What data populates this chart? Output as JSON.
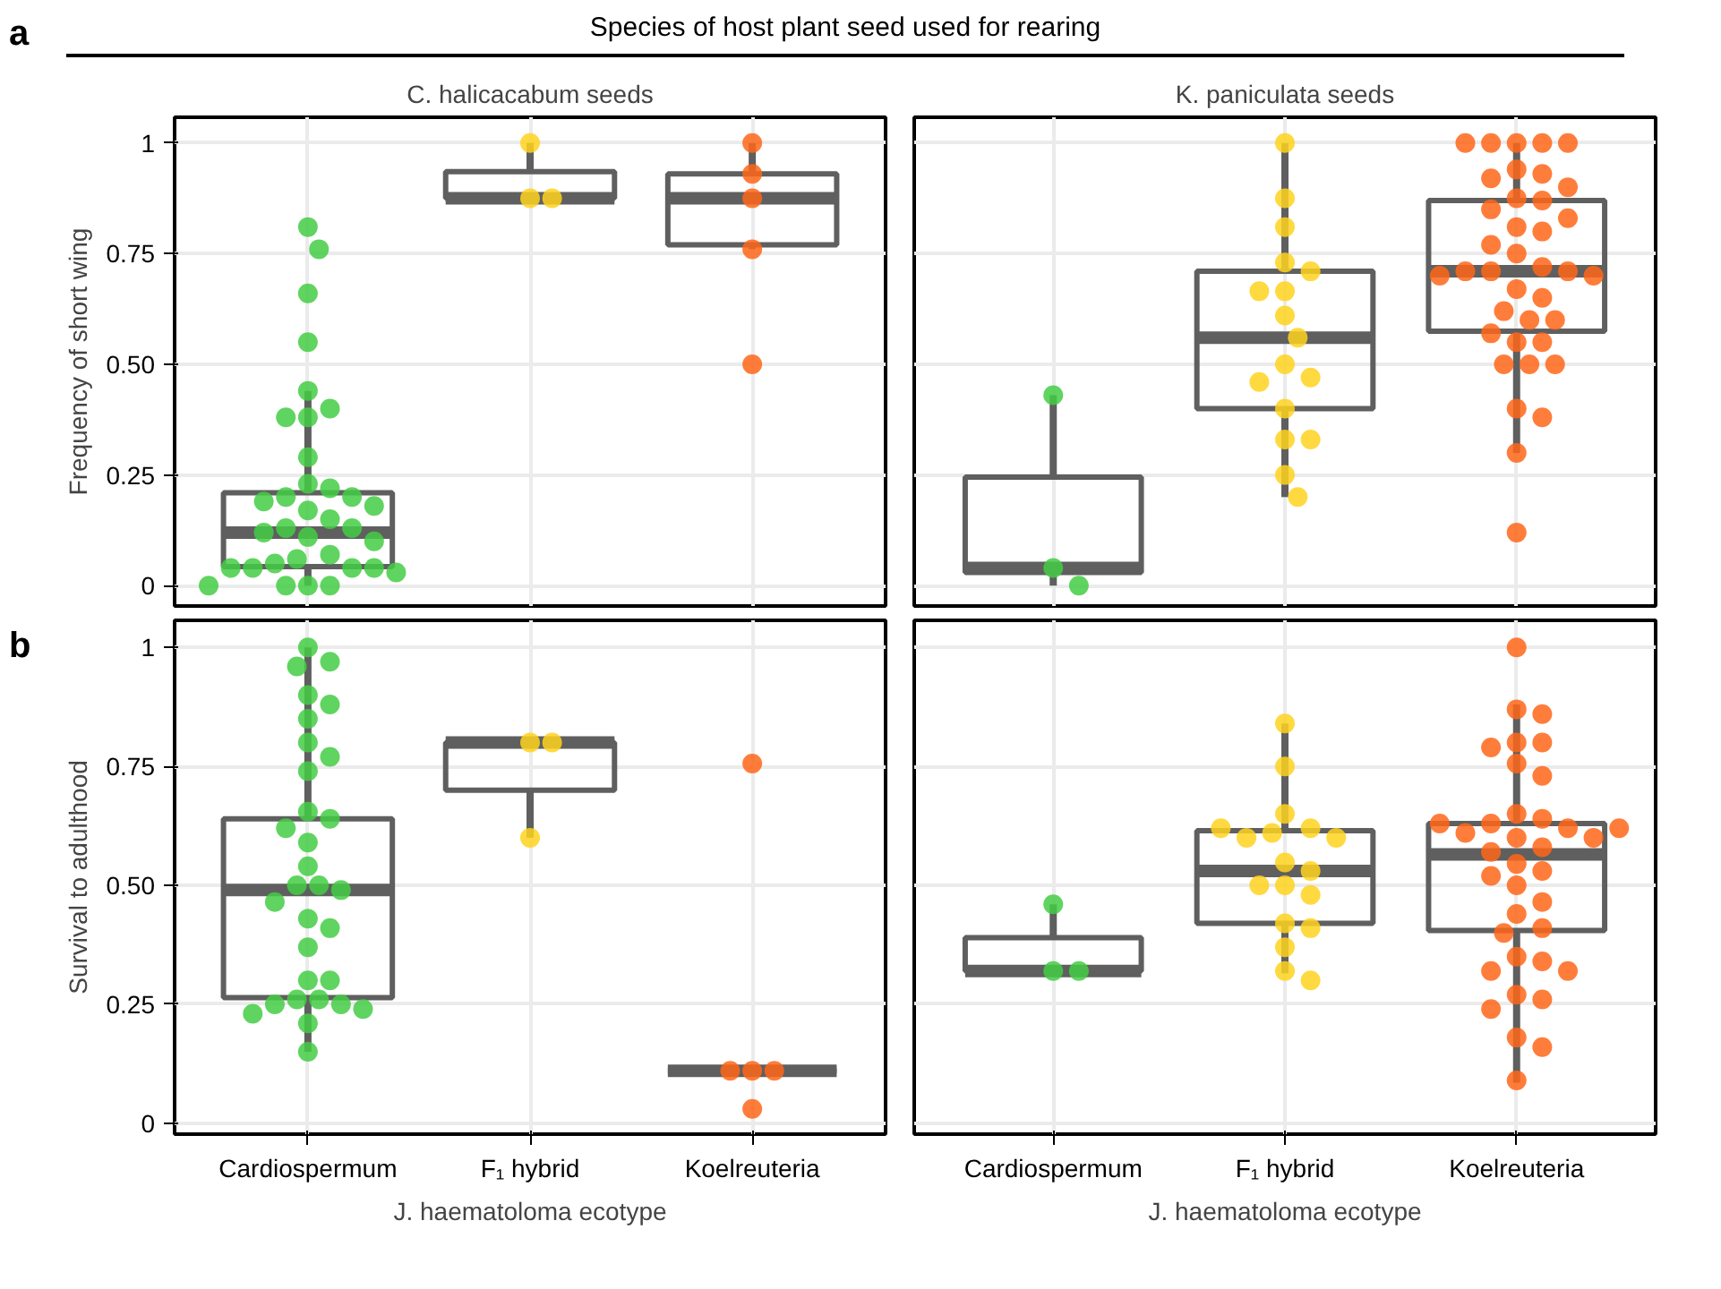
{
  "chart_data": [
    {
      "type": "box",
      "title": "C. halicacabum seeds",
      "ylabel": "Frequency of short wing",
      "annotations": [
        "a",
        "Species of host plant seed used for rearing"
      ],
      "categories": [
        "Cardiospermum",
        "F₁ hybrid",
        "Koelreuteria"
      ],
      "color": "#5f5f5f",
      "grid": true,
      "tick_labels": "y",
      "ylim": [
        -0.046,
        1.058
      ],
      "yticks": [
        0,
        {
          "value": 0.25,
          "label": "0.25"
        },
        {
          "value": 0.5,
          "label": "0.50"
        },
        {
          "value": 0.75,
          "label": "0.75"
        },
        1
      ],
      "boxes": [
        {
          "low": 0,
          "q1": 0.043,
          "median": 0.12,
          "q3": 0.21,
          "high": 0.44
        },
        {
          "low": 0.875,
          "q1": 0.875,
          "median": 0.875,
          "q3": 0.935,
          "high": 1.0
        },
        {
          "low": 0.76,
          "q1": 0.77,
          "median": 0.875,
          "q3": 0.93,
          "high": 1.0
        }
      ],
      "series": [
        {
          "type": "scatter",
          "color": "#44cc44",
          "x": [
            "Cardiospermum",
            "Cardiospermum",
            "Cardiospermum",
            "Cardiospermum",
            "Cardiospermum",
            "Cardiospermum",
            "Cardiospermum",
            "Cardiospermum",
            "Cardiospermum",
            "Cardiospermum",
            "Cardiospermum",
            "Cardiospermum",
            "Cardiospermum",
            "Cardiospermum",
            "Cardiospermum",
            "Cardiospermum",
            "Cardiospermum",
            "Cardiospermum",
            "Cardiospermum",
            "Cardiospermum",
            "Cardiospermum",
            "Cardiospermum",
            "Cardiospermum",
            "Cardiospermum",
            "Cardiospermum",
            "Cardiospermum",
            "Cardiospermum",
            "Cardiospermum",
            "Cardiospermum",
            "Cardiospermum",
            "Cardiospermum",
            "Cardiospermum",
            "Cardiospermum",
            "Cardiospermum"
          ],
          "values": [
            0.81,
            0.76,
            0.66,
            0.55,
            0.44,
            0.4,
            0.38,
            0.38,
            0.29,
            0.23,
            0.22,
            0.2,
            0.2,
            0.19,
            0.18,
            0.17,
            0.15,
            0.13,
            0.13,
            0.12,
            0.11,
            0.1,
            0.07,
            0.06,
            0.05,
            0.04,
            0.04,
            0.04,
            0.04,
            0.03,
            0.0,
            0.0,
            0.0,
            0.0
          ]
        },
        {
          "type": "scatter",
          "color": "#ffd21f",
          "x": [
            "F₁ hybrid",
            "F₁ hybrid",
            "F₁ hybrid"
          ],
          "values": [
            1.0,
            0.875,
            0.875
          ]
        },
        {
          "type": "scatter",
          "color": "#ff6619",
          "x": [
            "Koelreuteria",
            "Koelreuteria",
            "Koelreuteria",
            "Koelreuteria",
            "Koelreuteria"
          ],
          "values": [
            1.0,
            0.93,
            0.875,
            0.76,
            0.5
          ]
        }
      ]
    },
    {
      "type": "box",
      "title": "K. paniculata seeds",
      "categories": [
        "Cardiospermum",
        "F₁ hybrid",
        "Koelreuteria"
      ],
      "color": "#5f5f5f",
      "grid": true,
      "tick_labels": false,
      "ylim": [
        -0.046,
        1.058
      ],
      "yticks": [
        0,
        0.25,
        0.5,
        0.75,
        1
      ],
      "boxes": [
        {
          "low": 0,
          "q1": 0.03,
          "median": 0.04,
          "q3": 0.245,
          "high": 0.43
        },
        {
          "low": 0.2,
          "q1": 0.4,
          "median": 0.56,
          "q3": 0.71,
          "high": 1.0
        },
        {
          "low": 0.3,
          "q1": 0.575,
          "median": 0.71,
          "q3": 0.87,
          "high": 1.0
        }
      ],
      "series": [
        {
          "type": "scatter",
          "color": "#44cc44",
          "x": [
            "Cardiospermum",
            "Cardiospermum",
            "Cardiospermum"
          ],
          "values": [
            0.43,
            0.04,
            0.0
          ]
        },
        {
          "type": "scatter",
          "color": "#ffd21f",
          "x": [
            "F₁ hybrid",
            "F₁ hybrid",
            "F₁ hybrid",
            "F₁ hybrid",
            "F₁ hybrid",
            "F₁ hybrid",
            "F₁ hybrid",
            "F₁ hybrid",
            "F₁ hybrid",
            "F₁ hybrid",
            "F₁ hybrid",
            "F₁ hybrid",
            "F₁ hybrid",
            "F₁ hybrid",
            "F₁ hybrid",
            "F₁ hybrid",
            "F₁ hybrid"
          ],
          "values": [
            1.0,
            0.875,
            0.81,
            0.73,
            0.71,
            0.665,
            0.665,
            0.61,
            0.56,
            0.5,
            0.47,
            0.46,
            0.4,
            0.33,
            0.33,
            0.25,
            0.2
          ]
        },
        {
          "type": "scatter",
          "color": "#ff6619",
          "x": [
            "Koelreuteria",
            "Koelreuteria",
            "Koelreuteria",
            "Koelreuteria",
            "Koelreuteria",
            "Koelreuteria",
            "Koelreuteria",
            "Koelreuteria",
            "Koelreuteria",
            "Koelreuteria",
            "Koelreuteria",
            "Koelreuteria",
            "Koelreuteria",
            "Koelreuteria",
            "Koelreuteria",
            "Koelreuteria",
            "Koelreuteria",
            "Koelreuteria",
            "Koelreuteria",
            "Koelreuteria",
            "Koelreuteria",
            "Koelreuteria",
            "Koelreuteria",
            "Koelreuteria",
            "Koelreuteria",
            "Koelreuteria",
            "Koelreuteria",
            "Koelreuteria",
            "Koelreuteria",
            "Koelreuteria",
            "Koelreuteria",
            "Koelreuteria",
            "Koelreuteria",
            "Koelreuteria",
            "Koelreuteria",
            "Koelreuteria",
            "Koelreuteria",
            "Koelreuteria"
          ],
          "values": [
            1,
            1,
            1,
            1,
            1,
            0.94,
            0.93,
            0.92,
            0.9,
            0.875,
            0.87,
            0.85,
            0.83,
            0.81,
            0.8,
            0.77,
            0.75,
            0.72,
            0.71,
            0.71,
            0.71,
            0.7,
            0.7,
            0.67,
            0.65,
            0.62,
            0.6,
            0.6,
            0.57,
            0.55,
            0.55,
            0.5,
            0.5,
            0.5,
            0.4,
            0.38,
            0.3,
            0.12
          ]
        }
      ]
    },
    {
      "type": "box",
      "ylabel": "Survival to adulthood",
      "xlabel": "J. haematoloma ecotype",
      "annotations": [
        "b"
      ],
      "categories": [
        "Cardiospermum",
        "F₁ hybrid",
        "Koelreuteria"
      ],
      "color": "#5f5f5f",
      "grid": true,
      "ylim": [
        -0.023,
        1.057
      ],
      "yticks": [
        0,
        {
          "value": 0.25,
          "label": "0.25"
        },
        {
          "value": 0.5,
          "label": "0.50"
        },
        {
          "value": 0.75,
          "label": "0.75"
        },
        1
      ],
      "boxes": [
        {
          "low": 0.15,
          "q1": 0.264,
          "median": 0.49,
          "q3": 0.64,
          "high": 1.0
        },
        {
          "low": 0.6,
          "q1": 0.7,
          "median": 0.8,
          "q3": 0.8,
          "high": 0.8
        },
        {
          "low": 0.11,
          "q1": 0.11,
          "median": 0.11,
          "q3": 0.11,
          "high": 0.11
        }
      ],
      "series": [
        {
          "type": "scatter",
          "color": "#44cc44",
          "x": [
            "Cardiospermum",
            "Cardiospermum",
            "Cardiospermum",
            "Cardiospermum",
            "Cardiospermum",
            "Cardiospermum",
            "Cardiospermum",
            "Cardiospermum",
            "Cardiospermum",
            "Cardiospermum",
            "Cardiospermum",
            "Cardiospermum",
            "Cardiospermum",
            "Cardiospermum",
            "Cardiospermum",
            "Cardiospermum",
            "Cardiospermum",
            "Cardiospermum",
            "Cardiospermum",
            "Cardiospermum",
            "Cardiospermum",
            "Cardiospermum",
            "Cardiospermum",
            "Cardiospermum",
            "Cardiospermum",
            "Cardiospermum",
            "Cardiospermum",
            "Cardiospermum",
            "Cardiospermum",
            "Cardiospermum",
            "Cardiospermum"
          ],
          "values": [
            1.0,
            0.97,
            0.96,
            0.9,
            0.88,
            0.85,
            0.8,
            0.77,
            0.74,
            0.655,
            0.64,
            0.62,
            0.59,
            0.54,
            0.5,
            0.5,
            0.49,
            0.465,
            0.43,
            0.41,
            0.37,
            0.3,
            0.3,
            0.26,
            0.26,
            0.25,
            0.25,
            0.24,
            0.23,
            0.21,
            0.15
          ]
        },
        {
          "type": "scatter",
          "color": "#ffd21f",
          "x": [
            "F₁ hybrid",
            "F₁ hybrid",
            "F₁ hybrid"
          ],
          "values": [
            0.8,
            0.8,
            0.6
          ]
        },
        {
          "type": "scatter",
          "color": "#ff6619",
          "x": [
            "Koelreuteria",
            "Koelreuteria",
            "Koelreuteria",
            "Koelreuteria",
            "Koelreuteria"
          ],
          "values": [
            0.756,
            0.11,
            0.11,
            0.11,
            0.03
          ]
        }
      ]
    },
    {
      "type": "box",
      "xlabel": "J. haematoloma ecotype",
      "categories": [
        "Cardiospermum",
        "F₁ hybrid",
        "Koelreuteria"
      ],
      "color": "#5f5f5f",
      "grid": true,
      "tick_labels": "x",
      "ylim": [
        -0.023,
        1.057
      ],
      "yticks": [
        0,
        0.25,
        0.5,
        0.75,
        1
      ],
      "boxes": [
        {
          "low": 0.32,
          "q1": 0.32,
          "median": 0.32,
          "q3": 0.39,
          "high": 0.46
        },
        {
          "low": 0.315,
          "q1": 0.42,
          "median": 0.53,
          "q3": 0.615,
          "high": 0.84
        },
        {
          "low": 0.085,
          "q1": 0.405,
          "median": 0.565,
          "q3": 0.63,
          "high": 0.88
        }
      ],
      "series": [
        {
          "type": "scatter",
          "color": "#44cc44",
          "x": [
            "Cardiospermum",
            "Cardiospermum",
            "Cardiospermum"
          ],
          "values": [
            0.46,
            0.32,
            0.32
          ]
        },
        {
          "type": "scatter",
          "color": "#ffd21f",
          "x": [
            "F₁ hybrid",
            "F₁ hybrid",
            "F₁ hybrid",
            "F₁ hybrid",
            "F₁ hybrid",
            "F₁ hybrid",
            "F₁ hybrid",
            "F₁ hybrid",
            "F₁ hybrid",
            "F₁ hybrid",
            "F₁ hybrid",
            "F₁ hybrid",
            "F₁ hybrid",
            "F₁ hybrid",
            "F₁ hybrid",
            "F₁ hybrid",
            "F₁ hybrid",
            "F₁ hybrid"
          ],
          "values": [
            0.84,
            0.75,
            0.65,
            0.62,
            0.61,
            0.6,
            0.6,
            0.548,
            0.53,
            0.5,
            0.5,
            0.48,
            0.42,
            0.41,
            0.37,
            0.32,
            0.3,
            0.62
          ]
        },
        {
          "type": "scatter",
          "color": "#ff6619",
          "x": [
            "Koelreuteria",
            "Koelreuteria",
            "Koelreuteria",
            "Koelreuteria",
            "Koelreuteria",
            "Koelreuteria",
            "Koelreuteria",
            "Koelreuteria",
            "Koelreuteria",
            "Koelreuteria",
            "Koelreuteria",
            "Koelreuteria",
            "Koelreuteria",
            "Koelreuteria",
            "Koelreuteria",
            "Koelreuteria",
            "Koelreuteria",
            "Koelreuteria",
            "Koelreuteria",
            "Koelreuteria",
            "Koelreuteria",
            "Koelreuteria",
            "Koelreuteria",
            "Koelreuteria",
            "Koelreuteria",
            "Koelreuteria",
            "Koelreuteria",
            "Koelreuteria",
            "Koelreuteria",
            "Koelreuteria",
            "Koelreuteria",
            "Koelreuteria",
            "Koelreuteria",
            "Koelreuteria",
            "Koelreuteria",
            "Koelreuteria",
            "Koelreuteria"
          ],
          "values": [
            1.0,
            0.87,
            0.86,
            0.8,
            0.8,
            0.79,
            0.756,
            0.73,
            0.65,
            0.64,
            0.63,
            0.62,
            0.61,
            0.6,
            0.6,
            0.58,
            0.57,
            0.545,
            0.53,
            0.52,
            0.5,
            0.465,
            0.44,
            0.41,
            0.4,
            0.35,
            0.34,
            0.32,
            0.32,
            0.27,
            0.26,
            0.24,
            0.18,
            0.16,
            0.09,
            0.63,
            0.62
          ]
        }
      ]
    }
  ]
}
